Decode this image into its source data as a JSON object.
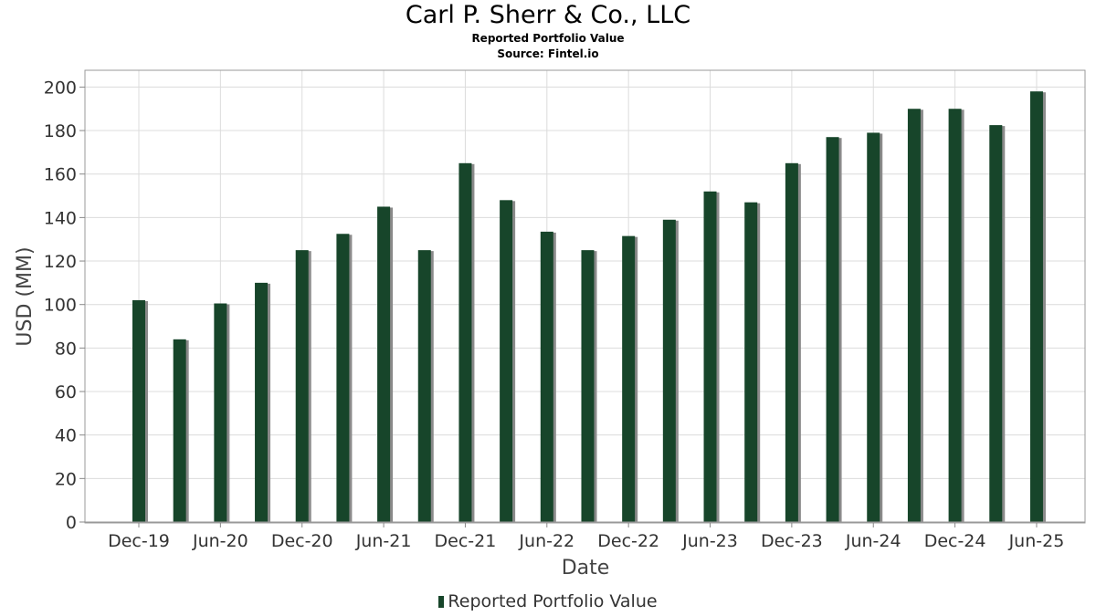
{
  "header": {
    "title": "Carl P. Sherr & Co., LLC",
    "subtitle": "Reported Portfolio Value",
    "source": "Source: Fintel.io"
  },
  "colors": {
    "bar": "#17452a",
    "shadow": "#8a8a8a",
    "grid": "#dcdcdc"
  },
  "chart_data": {
    "type": "bar",
    "title": "Carl P. Sherr & Co., LLC",
    "subtitle": "Reported Portfolio Value",
    "xlabel": "Date",
    "ylabel": "USD (MM)",
    "ylim": [
      0,
      208
    ],
    "yticks": [
      0,
      20,
      40,
      60,
      80,
      100,
      120,
      140,
      160,
      180,
      200
    ],
    "xtick_labels": [
      "Dec-19",
      "Jun-20",
      "Dec-20",
      "Jun-21",
      "Dec-21",
      "Jun-22",
      "Dec-22",
      "Jun-23",
      "Dec-23",
      "Jun-24",
      "Dec-24",
      "Jun-25"
    ],
    "grid": true,
    "legend_position": "bottom",
    "categories": [
      "Dec-19",
      "Mar-20",
      "Jun-20",
      "Sep-20",
      "Dec-20",
      "Mar-21",
      "Jun-21",
      "Sep-21",
      "Dec-21",
      "Mar-22",
      "Jun-22",
      "Sep-22",
      "Dec-22",
      "Mar-23",
      "Jun-23",
      "Sep-23",
      "Dec-23",
      "Mar-24",
      "Jun-24",
      "Sep-24",
      "Dec-24",
      "Mar-25",
      "Jun-25"
    ],
    "series": [
      {
        "name": "Reported Portfolio Value",
        "values": [
          102,
          84,
          100.5,
          110,
          125,
          132.5,
          145,
          125,
          165,
          148,
          133.5,
          125,
          131.5,
          139,
          152,
          147,
          165,
          177,
          179,
          190,
          190,
          182.5,
          198
        ]
      }
    ]
  }
}
